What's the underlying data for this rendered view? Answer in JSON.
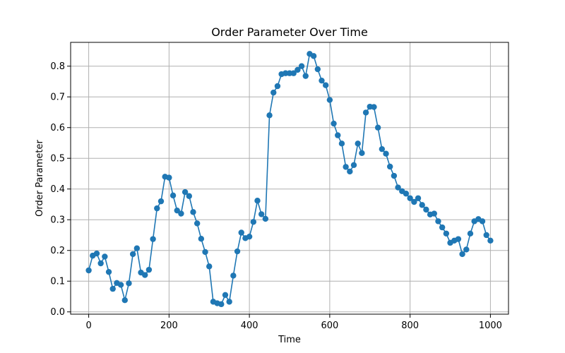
{
  "chart_data": {
    "type": "line",
    "title": "Order Parameter Over Time",
    "xlabel": "Time",
    "ylabel": "Order Parameter",
    "xlim": [
      -45,
      1045
    ],
    "ylim": [
      -0.0075,
      0.8775
    ],
    "xticks": [
      0,
      200,
      400,
      600,
      800,
      1000
    ],
    "yticks": [
      0.0,
      0.1,
      0.2,
      0.3,
      0.4,
      0.5,
      0.6,
      0.7,
      0.8
    ],
    "xtick_labels": [
      "0",
      "200",
      "400",
      "600",
      "800",
      "1000"
    ],
    "ytick_labels": [
      "0.0",
      "0.1",
      "0.2",
      "0.3",
      "0.4",
      "0.5",
      "0.6",
      "0.7",
      "0.8"
    ],
    "grid": true,
    "color": "#1f77b4",
    "x": [
      0,
      10,
      20,
      30,
      40,
      50,
      60,
      70,
      80,
      90,
      100,
      110,
      120,
      130,
      140,
      150,
      160,
      170,
      180,
      190,
      200,
      210,
      220,
      230,
      240,
      250,
      260,
      270,
      280,
      290,
      300,
      310,
      320,
      330,
      340,
      350,
      360,
      370,
      380,
      390,
      400,
      410,
      420,
      430,
      440,
      450,
      460,
      470,
      480,
      490,
      500,
      510,
      520,
      530,
      540,
      550,
      560,
      570,
      580,
      590,
      600,
      610,
      620,
      630,
      640,
      650,
      660,
      670,
      680,
      690,
      700,
      710,
      720,
      730,
      740,
      750,
      760,
      770,
      780,
      790,
      800,
      810,
      820,
      830,
      840,
      850,
      860,
      870,
      880,
      890,
      900,
      910,
      920,
      930,
      940,
      950,
      960,
      970,
      980,
      990,
      1000
    ],
    "y": [
      0.135,
      0.183,
      0.19,
      0.158,
      0.18,
      0.13,
      0.075,
      0.094,
      0.088,
      0.038,
      0.093,
      0.188,
      0.207,
      0.128,
      0.12,
      0.137,
      0.237,
      0.337,
      0.36,
      0.44,
      0.437,
      0.379,
      0.33,
      0.32,
      0.39,
      0.377,
      0.325,
      0.288,
      0.238,
      0.195,
      0.148,
      0.033,
      0.028,
      0.025,
      0.055,
      0.033,
      0.118,
      0.197,
      0.258,
      0.24,
      0.245,
      0.293,
      0.362,
      0.318,
      0.303,
      0.64,
      0.714,
      0.735,
      0.774,
      0.777,
      0.777,
      0.777,
      0.788,
      0.8,
      0.768,
      0.84,
      0.833,
      0.79,
      0.753,
      0.738,
      0.69,
      0.613,
      0.575,
      0.548,
      0.472,
      0.457,
      0.478,
      0.548,
      0.517,
      0.649,
      0.668,
      0.667,
      0.6,
      0.53,
      0.515,
      0.473,
      0.443,
      0.405,
      0.393,
      0.385,
      0.37,
      0.358,
      0.37,
      0.348,
      0.333,
      0.317,
      0.32,
      0.295,
      0.275,
      0.255,
      0.225,
      0.232,
      0.237,
      0.188,
      0.203,
      0.255,
      0.295,
      0.302,
      0.295,
      0.25,
      0.232
    ]
  }
}
